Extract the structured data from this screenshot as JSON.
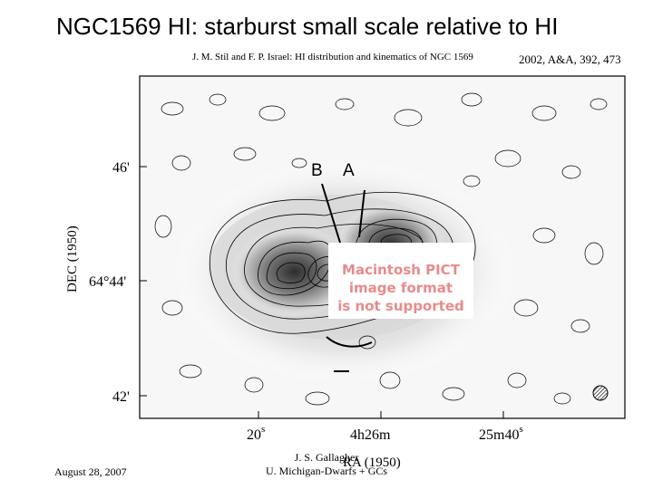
{
  "slide": {
    "title": "NGC1569 HI: starburst small scale relative to HI",
    "citation": "2002, A&A, 392, 473",
    "date": "August 28, 2007",
    "author": "J. S. Gallagher",
    "affiliation": "U. Michigan-Dwarfs + GCs"
  },
  "figure": {
    "header": "J. M. Stil and F. P. Israel: HI distribution and kinematics of NGC 1569",
    "ylabel": "DEC (1950)",
    "xlabel": "RA (1950)",
    "yticks": [
      {
        "label_deg": "",
        "label_min": "46",
        "unit": "'"
      },
      {
        "label_deg": "64°",
        "label_min": "44",
        "unit": "'"
      },
      {
        "label_deg": "",
        "label_min": "42",
        "unit": "'"
      }
    ],
    "xticks": [
      {
        "label": "20",
        "unit": "s"
      },
      {
        "label": "4h26m",
        "unit": ""
      },
      {
        "label": "25m40",
        "unit": "s"
      }
    ],
    "marker_b": "B",
    "marker_a": "A",
    "pict_placeholder": {
      "line1": "Macintosh PICT",
      "line2": "image format",
      "line3": "is not supported",
      "color": "#e88b8b"
    }
  }
}
